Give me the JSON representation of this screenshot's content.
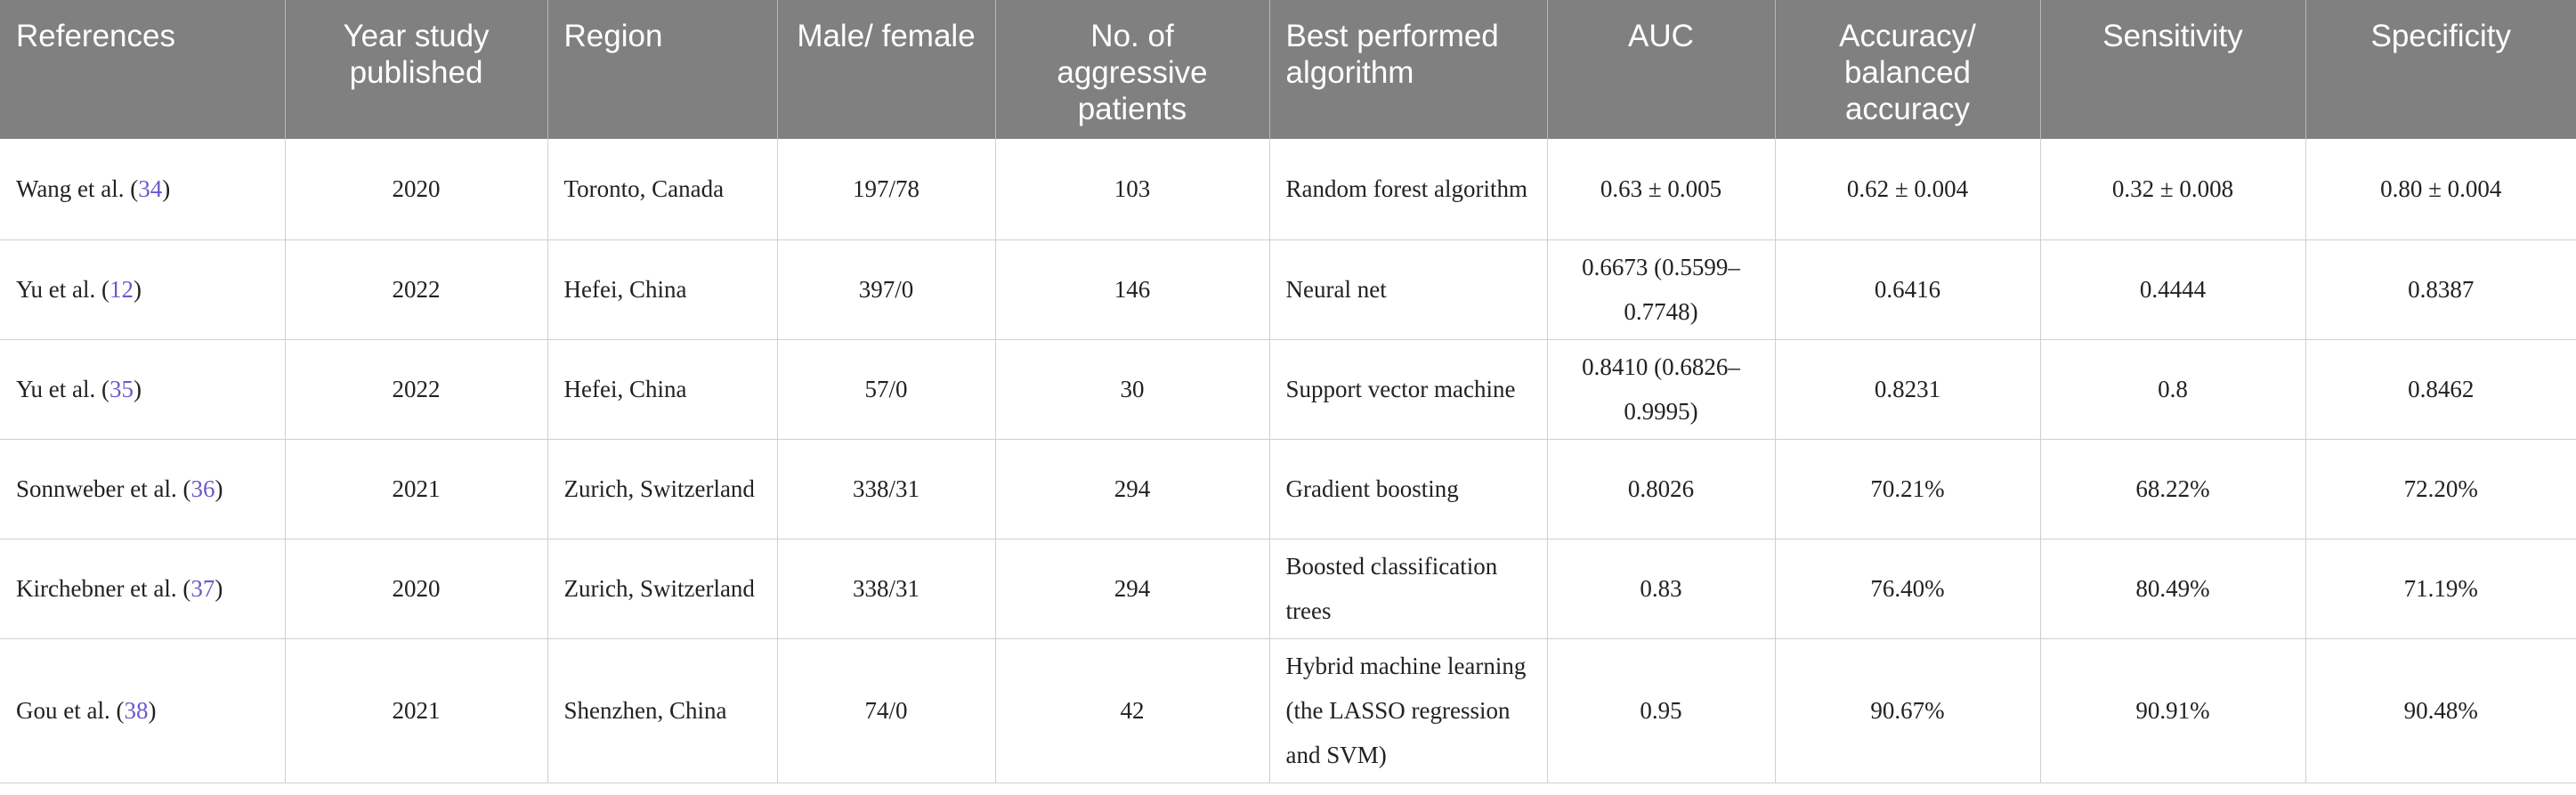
{
  "table": {
    "headers": {
      "references": "References",
      "year": "Year study published",
      "region": "Region",
      "male_female": "Male/ female",
      "aggressive": "No. of aggressive patients",
      "algorithm": "Best performed algorithm",
      "auc": "AUC",
      "accuracy": "Accuracy/ balanced accuracy",
      "sensitivity": "Sensitivity",
      "specificity": "Specificity"
    },
    "rows": [
      {
        "author": "Wang et al. (",
        "ref": "34",
        "close": ")",
        "year": "2020",
        "region": "Toronto, Canada",
        "male_female": "197/78",
        "aggressive": "103",
        "algorithm": "Random forest algorithm",
        "auc": "0.63 ± 0.005",
        "accuracy": "0.62 ± 0.004",
        "sensitivity": "0.32 ± 0.008",
        "specificity": "0.80 ± 0.004"
      },
      {
        "author": "Yu et al. (",
        "ref": "12",
        "close": ")",
        "year": "2022",
        "region": "Hefei, China",
        "male_female": "397/0",
        "aggressive": "146",
        "algorithm": "Neural net",
        "auc": "0.6673 (0.5599–0.7748)",
        "accuracy": "0.6416",
        "sensitivity": "0.4444",
        "specificity": "0.8387"
      },
      {
        "author": "Yu et al. (",
        "ref": "35",
        "close": ")",
        "year": "2022",
        "region": "Hefei, China",
        "male_female": "57/0",
        "aggressive": "30",
        "algorithm": "Support vector machine",
        "auc": "0.8410 (0.6826–0.9995)",
        "accuracy": "0.8231",
        "sensitivity": "0.8",
        "specificity": "0.8462"
      },
      {
        "author": "Sonnweber et al. (",
        "ref": "36",
        "close": ")",
        "year": "2021",
        "region": "Zurich, Switzerland",
        "male_female": "338/31",
        "aggressive": "294",
        "algorithm": "Gradient boosting",
        "auc": "0.8026",
        "accuracy": "70.21%",
        "sensitivity": "68.22%",
        "specificity": "72.20%"
      },
      {
        "author": "Kirchebner et al. (",
        "ref": "37",
        "close": ")",
        "year": "2020",
        "region": "Zurich, Switzerland",
        "male_female": "338/31",
        "aggressive": "294",
        "algorithm": "Boosted classification trees",
        "auc": "0.83",
        "accuracy": "76.40%",
        "sensitivity": "80.49%",
        "specificity": "71.19%"
      },
      {
        "author": "Gou et al. (",
        "ref": "38",
        "close": ")",
        "year": "2021",
        "region": "Shenzhen, China",
        "male_female": "74/0",
        "aggressive": "42",
        "algorithm": "Hybrid machine learning (the LASSO regression and SVM)",
        "auc": "0.95",
        "accuracy": "90.67%",
        "sensitivity": "90.91%",
        "specificity": "90.48%"
      }
    ]
  },
  "colors": {
    "header_bg": "#808080",
    "header_text": "#ffffff",
    "link": "#6a5acd",
    "grid": "#cfcfcf"
  }
}
